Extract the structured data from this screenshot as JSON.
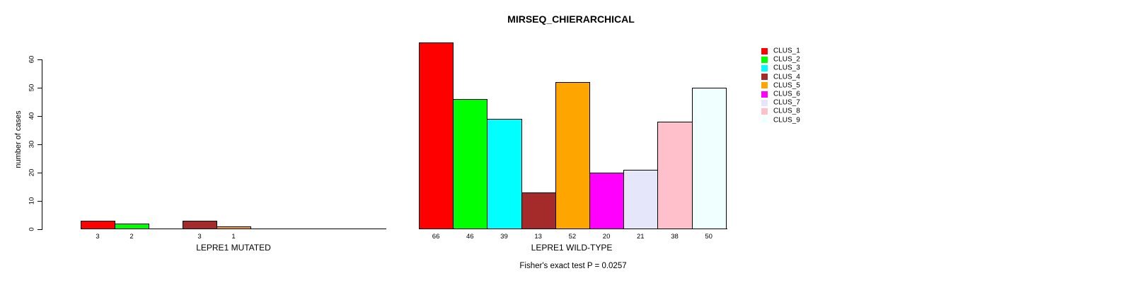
{
  "title": "MIRSEQ_CHIERARCHICAL",
  "caption": "Fisher's exact test P = 0.0257",
  "y_axis": {
    "label": "number of cases",
    "ticks": [
      0,
      10,
      20,
      30,
      40,
      50,
      60
    ]
  },
  "legend": {
    "position": "right-outside",
    "items": [
      {
        "label": "CLUS_1",
        "color": "#FF0000"
      },
      {
        "label": "CLUS_2",
        "color": "#00FF00"
      },
      {
        "label": "CLUS_3",
        "color": "#00FFFF"
      },
      {
        "label": "CLUS_4",
        "color": "#A52A2A"
      },
      {
        "label": "CLUS_5",
        "color": "#FFA500"
      },
      {
        "label": "CLUS_6",
        "color": "#FF00FF"
      },
      {
        "label": "CLUS_7",
        "color": "#E6E6FA"
      },
      {
        "label": "CLUS_8",
        "color": "#FFC0CB"
      },
      {
        "label": "CLUS_9",
        "color": "#F0FFFF"
      }
    ]
  },
  "chart_data": [
    {
      "type": "bar",
      "panel": "left",
      "xlabel": "LEPRE1 MUTATED",
      "ylabel": "number of cases",
      "ylim": [
        0,
        60
      ],
      "grid": false,
      "categories": [
        "CLUS_1",
        "CLUS_2",
        "CLUS_3",
        "CLUS_4",
        "CLUS_5",
        "CLUS_6",
        "CLUS_7",
        "CLUS_8",
        "CLUS_9"
      ],
      "values": [
        3,
        2,
        0,
        3,
        1,
        0,
        0,
        0,
        0
      ],
      "bar_labels": [
        "3",
        "2",
        "",
        "3",
        "1",
        "",
        "",
        "",
        ""
      ]
    },
    {
      "type": "bar",
      "panel": "right",
      "xlabel": "LEPRE1 WILD-TYPE",
      "ylabel": "number of cases",
      "ylim": [
        0,
        66
      ],
      "grid": false,
      "categories": [
        "CLUS_1",
        "CLUS_2",
        "CLUS_3",
        "CLUS_4",
        "CLUS_5",
        "CLUS_6",
        "CLUS_7",
        "CLUS_8",
        "CLUS_9"
      ],
      "values": [
        66,
        46,
        39,
        13,
        52,
        20,
        21,
        38,
        50
      ],
      "bar_labels": [
        "66",
        "46",
        "39",
        "13",
        "52",
        "20",
        "21",
        "38",
        "50"
      ]
    }
  ]
}
